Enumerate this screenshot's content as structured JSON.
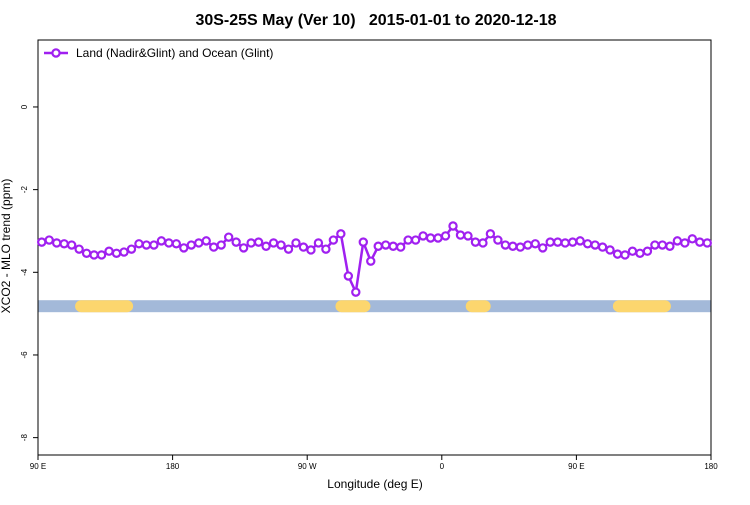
{
  "chart_data": {
    "type": "line",
    "title": "30S-25S May (Ver 10)   2015-01-01 to 2020-12-18",
    "xlabel": "Longitude (deg E)",
    "ylabel": "XCO2 - MLO trend (ppm)",
    "xlim": [
      90,
      540
    ],
    "ylim": [
      -8.42,
      1.62
    ],
    "xticks": [
      {
        "value": 90,
        "label": "90 E"
      },
      {
        "value": 180,
        "label": "180"
      },
      {
        "value": 270,
        "label": "90 W"
      },
      {
        "value": 360,
        "label": "0"
      },
      {
        "value": 450,
        "label": "90 E"
      },
      {
        "value": 540,
        "label": "180"
      }
    ],
    "yticks": [
      0,
      -2,
      -4,
      -6,
      -8
    ],
    "legend": "top-left",
    "x": [
      92.5,
      97.5,
      102.5,
      107.5,
      112.5,
      117.5,
      122.5,
      127.5,
      132.5,
      137.5,
      142.5,
      147.5,
      152.5,
      157.5,
      162.5,
      167.5,
      172.5,
      177.5,
      182.5,
      187.5,
      192.5,
      197.5,
      202.5,
      207.5,
      212.5,
      217.5,
      222.5,
      227.5,
      232.5,
      237.5,
      242.5,
      247.5,
      252.5,
      257.5,
      262.5,
      267.5,
      272.5,
      277.5,
      282.5,
      287.5,
      292.5,
      297.5,
      302.5,
      307.5,
      312.5,
      317.5,
      322.5,
      327.5,
      332.5,
      337.5,
      342.5,
      347.5,
      352.5,
      357.5,
      362.5,
      367.5,
      372.5,
      377.5,
      382.5,
      387.5,
      392.5,
      397.5,
      402.5,
      407.5,
      412.5,
      417.5,
      422.5,
      427.5,
      432.5,
      437.5,
      442.5,
      447.5,
      452.5,
      457.5,
      462.5,
      467.5,
      472.5,
      477.5,
      482.5,
      487.5,
      492.5,
      497.5,
      502.5,
      507.5,
      512.5,
      517.5,
      522.5,
      527.5,
      532.5,
      537.5
    ],
    "series": [
      {
        "name": "Land (Nadir&Glint) and Ocean (Glint)",
        "color": "#a020f0",
        "values": [
          -3.27,
          -3.22,
          -3.29,
          -3.31,
          -3.34,
          -3.44,
          -3.54,
          -3.58,
          -3.58,
          -3.49,
          -3.54,
          -3.51,
          -3.44,
          -3.31,
          -3.34,
          -3.34,
          -3.24,
          -3.29,
          -3.31,
          -3.41,
          -3.34,
          -3.29,
          -3.24,
          -3.39,
          -3.34,
          -3.15,
          -3.27,
          -3.41,
          -3.29,
          -3.27,
          -3.37,
          -3.29,
          -3.34,
          -3.44,
          -3.29,
          -3.39,
          -3.46,
          -3.29,
          -3.44,
          -3.22,
          -3.07,
          -4.09,
          -4.48,
          -3.27,
          -3.73,
          -3.37,
          -3.34,
          -3.37,
          -3.39,
          -3.22,
          -3.22,
          -3.12,
          -3.17,
          -3.17,
          -3.12,
          -2.88,
          -3.1,
          -3.12,
          -3.27,
          -3.29,
          -3.07,
          -3.22,
          -3.34,
          -3.37,
          -3.39,
          -3.34,
          -3.31,
          -3.41,
          -3.27,
          -3.27,
          -3.29,
          -3.27,
          -3.24,
          -3.31,
          -3.34,
          -3.39,
          -3.46,
          -3.56,
          -3.58,
          -3.49,
          -3.54,
          -3.49,
          -3.34,
          -3.34,
          -3.37,
          -3.24,
          -3.29,
          -3.19,
          -3.27,
          -3.29
        ]
      }
    ],
    "surface_band": {
      "y": -4.82,
      "height": 0.29,
      "color": "#a3b9d9",
      "land_color": "#fcd66e",
      "land_segments": [
        [
          114.8,
          153.6
        ],
        [
          288.9,
          312.3
        ],
        [
          376,
          392.7
        ],
        [
          474.4,
          513.2
        ]
      ]
    }
  }
}
